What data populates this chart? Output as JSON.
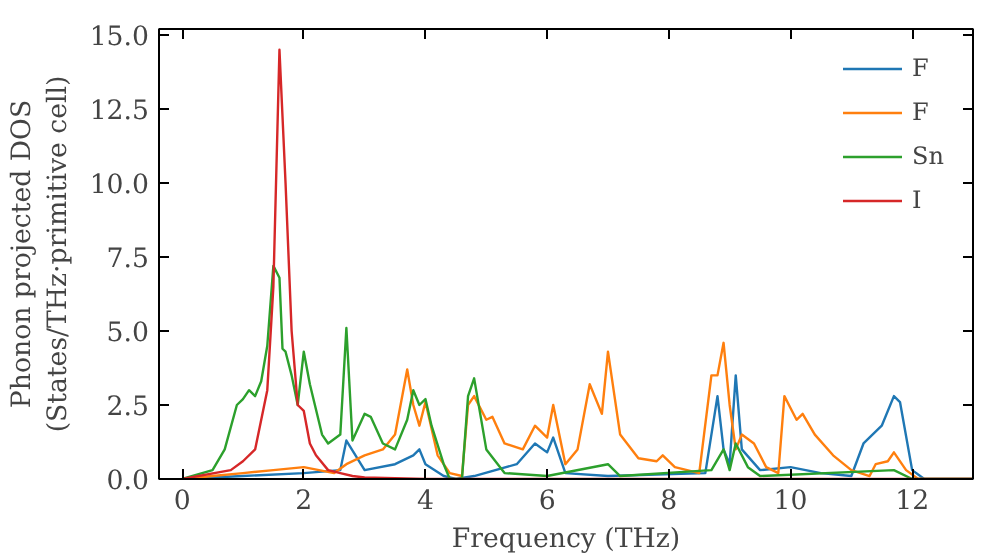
{
  "chart_data": {
    "type": "line",
    "xlabel": "Frequency (THz)",
    "ylabel": "Phonon projected DOS\n(States/THz·primitive cell)",
    "xlim": [
      -0.38,
      13.0
    ],
    "ylim": [
      0,
      15.2
    ],
    "xticks": [
      0,
      2,
      4,
      6,
      8,
      10,
      12
    ],
    "yticks": [
      {
        "value": 0,
        "label": "0.0"
      },
      {
        "value": 2.5,
        "label": "2.5"
      },
      {
        "value": 5,
        "label": "5.0"
      },
      {
        "value": 7.5,
        "label": "7.5"
      },
      {
        "value": 10,
        "label": "10.0"
      },
      {
        "value": 12.5,
        "label": "12.5"
      },
      {
        "value": 15,
        "label": "15.0"
      }
    ],
    "legend": "top right",
    "grid": false,
    "series": [
      {
        "name": "F",
        "color": "#1f77b4",
        "x": [
          0,
          1,
          2,
          2.6,
          2.7,
          3.0,
          3.5,
          3.8,
          3.9,
          4.0,
          4.3,
          4.5,
          4.8,
          5.5,
          5.8,
          6.0,
          6.1,
          6.3,
          7,
          8.6,
          8.8,
          8.9,
          9.0,
          9.1,
          9.2,
          9.5,
          10,
          10.5,
          11,
          11.2,
          11.5,
          11.7,
          11.8,
          12.0,
          12.2,
          13
        ],
        "values": [
          0,
          0.1,
          0.2,
          0.3,
          1.3,
          0.3,
          0.5,
          0.8,
          1.0,
          0.5,
          0.1,
          0,
          0.1,
          0.5,
          1.2,
          0.9,
          1.4,
          0.2,
          0.1,
          0.2,
          2.8,
          1.0,
          0.5,
          3.5,
          1.0,
          0.3,
          0.4,
          0.2,
          0.1,
          1.2,
          1.8,
          2.8,
          2.6,
          0.3,
          0,
          0
        ]
      },
      {
        "name": "F",
        "color": "#ff7f0e",
        "x": [
          0,
          0.5,
          1.0,
          1.5,
          2.0,
          2.5,
          2.7,
          3.0,
          3.3,
          3.5,
          3.7,
          3.8,
          3.9,
          4.0,
          4.2,
          4.4,
          4.6,
          4.7,
          4.8,
          5.0,
          5.1,
          5.3,
          5.6,
          5.8,
          6.0,
          6.1,
          6.3,
          6.5,
          6.7,
          6.9,
          7.0,
          7.2,
          7.5,
          7.8,
          7.9,
          8.1,
          8.5,
          8.7,
          8.8,
          8.9,
          9.0,
          9.1,
          9.2,
          9.4,
          9.6,
          9.8,
          9.9,
          10.0,
          10.1,
          10.2,
          10.4,
          10.7,
          11.0,
          11.3,
          11.4,
          11.6,
          11.7,
          11.9,
          12.1,
          13
        ],
        "values": [
          0,
          0.1,
          0.2,
          0.3,
          0.4,
          0.2,
          0.5,
          0.8,
          1.0,
          1.5,
          3.7,
          2.5,
          1.8,
          2.6,
          0.8,
          0.2,
          0.1,
          2.5,
          2.8,
          2.0,
          2.1,
          1.2,
          1.0,
          1.8,
          1.4,
          2.5,
          0.5,
          1.0,
          3.2,
          2.2,
          4.3,
          1.5,
          0.7,
          0.6,
          0.8,
          0.4,
          0.2,
          3.5,
          3.5,
          4.6,
          2.5,
          1.0,
          1.5,
          1.2,
          0.4,
          0.2,
          2.8,
          2.4,
          2.0,
          2.2,
          1.5,
          0.8,
          0.3,
          0.1,
          0.5,
          0.6,
          0.9,
          0.3,
          0,
          0
        ]
      },
      {
        "name": "Sn",
        "color": "#2ca02c",
        "x": [
          0,
          0.5,
          0.7,
          0.9,
          1.0,
          1.1,
          1.2,
          1.3,
          1.4,
          1.5,
          1.6,
          1.65,
          1.7,
          1.8,
          1.9,
          2.0,
          2.1,
          2.3,
          2.4,
          2.6,
          2.7,
          2.8,
          3.0,
          3.1,
          3.3,
          3.5,
          3.7,
          3.8,
          3.9,
          4.0,
          4.1,
          4.3,
          4.4,
          4.6,
          4.7,
          4.8,
          4.9,
          5.0,
          5.3,
          6,
          7.0,
          7.2,
          8.7,
          8.9,
          9.0,
          9.1,
          9.3,
          9.5,
          11.7,
          12.0,
          13
        ],
        "values": [
          0,
          0.3,
          1.0,
          2.5,
          2.7,
          3.0,
          2.8,
          3.3,
          4.5,
          7.2,
          6.8,
          4.4,
          4.3,
          3.5,
          2.5,
          4.3,
          3.2,
          1.5,
          1.2,
          1.5,
          5.1,
          1.3,
          2.2,
          2.1,
          1.2,
          1.0,
          2.0,
          3.0,
          2.5,
          2.7,
          1.8,
          0.5,
          0,
          0,
          2.8,
          3.4,
          2.2,
          1.0,
          0.2,
          0.1,
          0.5,
          0.1,
          0.3,
          1.0,
          0.3,
          1.2,
          0.4,
          0.1,
          0.3,
          0,
          0
        ]
      },
      {
        "name": "I",
        "color": "#d62728",
        "x": [
          0,
          0.8,
          1.0,
          1.2,
          1.4,
          1.5,
          1.6,
          1.7,
          1.8,
          1.9,
          2.0,
          2.1,
          2.2,
          2.4,
          2.6,
          2.8,
          3.0,
          4,
          13
        ],
        "values": [
          0,
          0.3,
          0.6,
          1.0,
          3.0,
          6.5,
          14.5,
          10.0,
          5.0,
          2.5,
          2.3,
          1.2,
          0.8,
          0.3,
          0.2,
          0.1,
          0.05,
          0,
          0
        ]
      }
    ]
  }
}
